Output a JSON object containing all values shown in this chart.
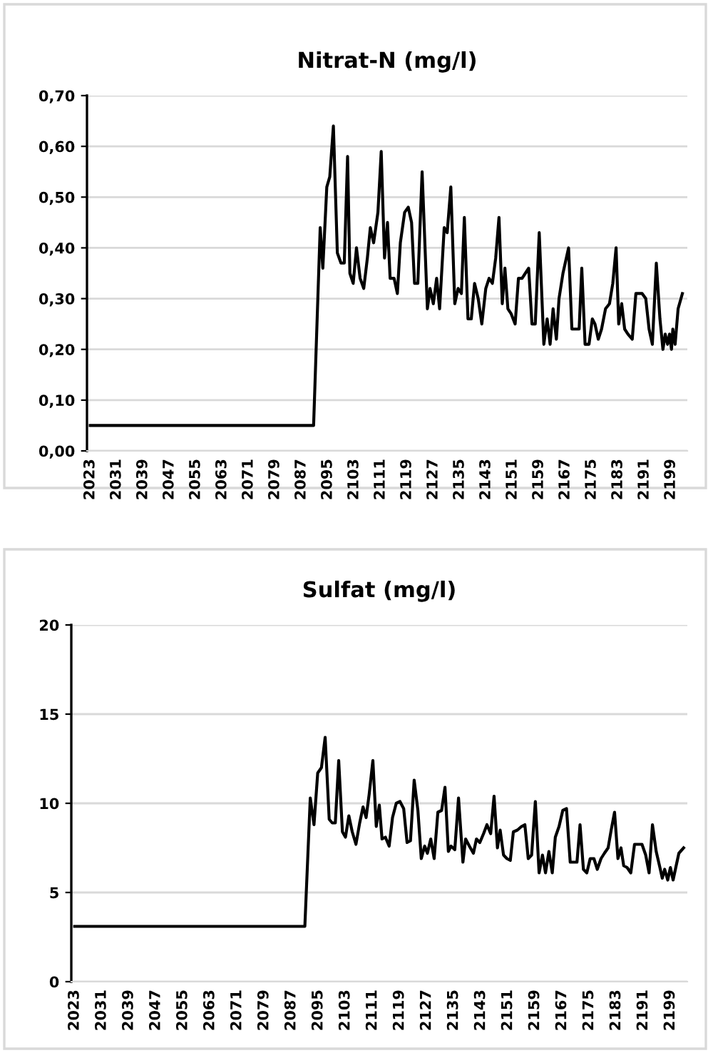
{
  "chart_data": [
    {
      "type": "line",
      "title": "Nitrat-N (mg/l)",
      "xlim": [
        2022,
        2204
      ],
      "xticks": [
        2023,
        2031,
        2039,
        2047,
        2055,
        2063,
        2071,
        2079,
        2087,
        2095,
        2103,
        2111,
        2119,
        2127,
        2135,
        2143,
        2151,
        2159,
        2167,
        2175,
        2183,
        2191,
        2199
      ],
      "ylim": [
        0,
        0.7
      ],
      "yticks": [
        {
          "value": 0,
          "label": "0,00"
        },
        {
          "value": 0.1,
          "label": "0,10"
        },
        {
          "value": 0.2,
          "label": "0,20"
        },
        {
          "value": 0.3,
          "label": "0,30"
        },
        {
          "value": 0.4,
          "label": "0,40"
        },
        {
          "value": 0.5,
          "label": "0,50"
        },
        {
          "value": 0.6,
          "label": "0,60"
        },
        {
          "value": 0.7,
          "label": "0,70"
        }
      ],
      "grid": "y",
      "marker": "none",
      "line_style": "solid",
      "series": [
        {
          "color": "#000000",
          "x": [
            2023,
            2090.7,
            2092.7,
            2093.5,
            2094.7,
            2095.6,
            2096.7,
            2097.9,
            2099,
            2100,
            2101,
            2101.7,
            2102.7,
            2103.7,
            2104.8,
            2105.9,
            2107,
            2107.9,
            2108.9,
            2110.2,
            2111.2,
            2112.2,
            2113.1,
            2113.9,
            2115.1,
            2116.1,
            2117,
            2118.3,
            2119.4,
            2120.4,
            2121.3,
            2122.3,
            2123.6,
            2125.2,
            2126,
            2127,
            2128,
            2128.9,
            2130.3,
            2131.2,
            2132.3,
            2133.5,
            2134.5,
            2135.5,
            2136.4,
            2137.5,
            2138.5,
            2139.5,
            2140.6,
            2141.7,
            2142.9,
            2143.9,
            2144.9,
            2145.9,
            2146.9,
            2147.9,
            2148.7,
            2149.6,
            2150.6,
            2151.8,
            2152.8,
            2153.9,
            2154.9,
            2155.9,
            2156.9,
            2157.9,
            2159.1,
            2160.5,
            2161.5,
            2162.4,
            2163.3,
            2164.3,
            2165.1,
            2166.3,
            2168,
            2169,
            2170,
            2171.2,
            2172,
            2173,
            2174.2,
            2175.2,
            2176,
            2177,
            2178,
            2179.2,
            2180.4,
            2181.4,
            2182.4,
            2183.2,
            2184.1,
            2185,
            2186,
            2187.3,
            2188.4,
            2189.3,
            2190.3,
            2191.4,
            2192.4,
            2193.4,
            2194.6,
            2195.7,
            2196.6,
            2197.3,
            2198,
            2198.6,
            2199.2,
            2199.6,
            2200.3,
            2201.2,
            2202.5
          ],
          "values": [
            0.05,
            0.05,
            0.44,
            0.36,
            0.52,
            0.54,
            0.64,
            0.39,
            0.37,
            0.37,
            0.58,
            0.35,
            0.33,
            0.4,
            0.34,
            0.32,
            0.38,
            0.44,
            0.41,
            0.47,
            0.59,
            0.38,
            0.45,
            0.34,
            0.34,
            0.31,
            0.41,
            0.47,
            0.48,
            0.45,
            0.33,
            0.33,
            0.55,
            0.28,
            0.32,
            0.29,
            0.34,
            0.28,
            0.44,
            0.43,
            0.52,
            0.29,
            0.32,
            0.31,
            0.46,
            0.26,
            0.26,
            0.33,
            0.3,
            0.25,
            0.32,
            0.34,
            0.33,
            0.38,
            0.46,
            0.29,
            0.36,
            0.28,
            0.27,
            0.25,
            0.34,
            0.34,
            0.35,
            0.36,
            0.25,
            0.25,
            0.43,
            0.21,
            0.26,
            0.21,
            0.28,
            0.22,
            0.3,
            0.35,
            0.4,
            0.24,
            0.24,
            0.24,
            0.36,
            0.21,
            0.21,
            0.26,
            0.25,
            0.22,
            0.24,
            0.28,
            0.29,
            0.33,
            0.4,
            0.25,
            0.29,
            0.24,
            0.23,
            0.22,
            0.31,
            0.31,
            0.31,
            0.3,
            0.24,
            0.21,
            0.37,
            0.26,
            0.2,
            0.23,
            0.21,
            0.23,
            0.2,
            0.24,
            0.21,
            0.28,
            0.31
          ]
        }
      ]
    },
    {
      "type": "line",
      "title": "Sulfat (mg/l)",
      "xlim": [
        2022,
        2204
      ],
      "xticks": [
        2023,
        2031,
        2039,
        2047,
        2055,
        2063,
        2071,
        2079,
        2087,
        2095,
        2103,
        2111,
        2119,
        2127,
        2135,
        2143,
        2151,
        2159,
        2167,
        2175,
        2183,
        2191,
        2199
      ],
      "ylim": [
        0,
        20
      ],
      "yticks": [
        0,
        5,
        10,
        15,
        20
      ],
      "grid": "y",
      "marker": "none",
      "line_style": "solid",
      "series": [
        {
          "color": "#000000",
          "x": [
            2023,
            2091,
            2092.6,
            2093.7,
            2094.8,
            2095.9,
            2097,
            2098.2,
            2099.1,
            2100,
            2101,
            2102.1,
            2103,
            2104,
            2105,
            2106.1,
            2107.2,
            2108.2,
            2109.1,
            2110,
            2111.1,
            2112.1,
            2113,
            2113.8,
            2114.8,
            2115.9,
            2116.9,
            2118,
            2119.1,
            2120.2,
            2121.2,
            2122.2,
            2123.3,
            2124.4,
            2125.4,
            2126.4,
            2127.2,
            2128.2,
            2129.2,
            2130.3,
            2131.4,
            2132.4,
            2133.4,
            2134.2,
            2135.3,
            2136.4,
            2137.7,
            2138.5,
            2139.6,
            2140.8,
            2141.7,
            2142.7,
            2143.8,
            2144.8,
            2145.9,
            2146.9,
            2147.9,
            2148.7,
            2149.7,
            2150.7,
            2151.7,
            2152.6,
            2153.8,
            2155,
            2156,
            2157,
            2158,
            2159.1,
            2160.2,
            2161.2,
            2162.1,
            2163.1,
            2164.1,
            2165,
            2166.1,
            2167.2,
            2168.3,
            2169.4,
            2170.5,
            2171.4,
            2172.3,
            2173.3,
            2174.3,
            2175.3,
            2176.4,
            2177.4,
            2178.5,
            2179.5,
            2180.6,
            2181.5,
            2182.5,
            2183.5,
            2184.4,
            2185.2,
            2186.2,
            2187.3,
            2188.4,
            2189.5,
            2190.6,
            2191.7,
            2192.7,
            2193.7,
            2194.8,
            2195.9,
            2196.6,
            2197.3,
            2198.2,
            2199,
            2199.8,
            2200.7,
            2201.5,
            2202.9
          ],
          "values": [
            3.1,
            3.1,
            10.3,
            8.8,
            11.7,
            12,
            13.7,
            9.1,
            8.9,
            8.9,
            12.4,
            8.4,
            8.1,
            9.3,
            8.4,
            7.7,
            8.9,
            9.8,
            9.2,
            10.5,
            12.4,
            8.7,
            9.9,
            8,
            8.1,
            7.6,
            9.2,
            10,
            10.1,
            9.7,
            7.8,
            7.9,
            11.3,
            9.6,
            6.9,
            7.6,
            7.2,
            8,
            6.9,
            9.5,
            9.6,
            10.9,
            7.3,
            7.6,
            7.4,
            10.3,
            6.7,
            8,
            7.6,
            7.2,
            8,
            7.8,
            8.3,
            8.8,
            8.3,
            10.4,
            7.5,
            8.5,
            7.1,
            6.9,
            6.8,
            8.4,
            8.5,
            8.7,
            8.8,
            6.9,
            7.1,
            10.1,
            6.1,
            7.1,
            6.1,
            7.3,
            6.1,
            8.1,
            8.7,
            9.6,
            9.7,
            6.7,
            6.7,
            6.7,
            8.8,
            6.3,
            6.1,
            6.9,
            6.9,
            6.3,
            6.9,
            7.2,
            7.5,
            8.5,
            9.5,
            6.9,
            7.5,
            6.5,
            6.4,
            6.1,
            7.7,
            7.7,
            7.7,
            7.1,
            6.1,
            8.8,
            7.3,
            6.4,
            5.8,
            6.3,
            5.7,
            6.4,
            5.7,
            6.5,
            7.2,
            7.5
          ]
        }
      ]
    }
  ]
}
